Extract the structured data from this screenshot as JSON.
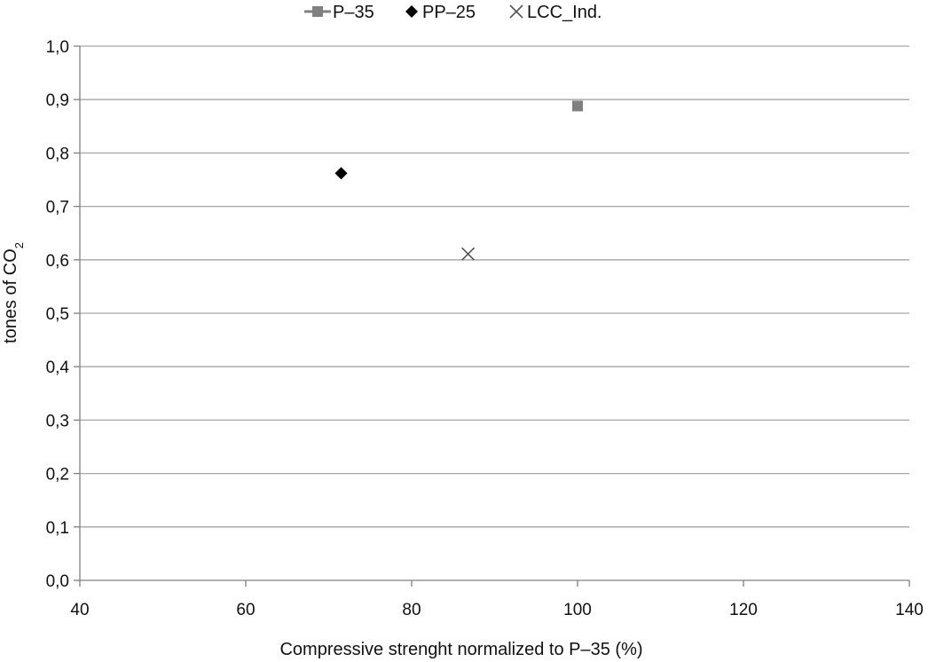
{
  "chart_data": {
    "type": "scatter",
    "xlabel": "Compressive strenght normalized to P–35 (%)",
    "ylabel": {
      "main": "tones of CO",
      "subscript": "2"
    },
    "xlim": [
      40,
      140
    ],
    "ylim": [
      0,
      1.0
    ],
    "x_ticks": [
      "40",
      "60",
      "80",
      "100",
      "120",
      "140"
    ],
    "y_ticks": [
      "0,0",
      "0,1",
      "0,2",
      "0,3",
      "0,4",
      "0,5",
      "0,6",
      "0,7",
      "0,8",
      "0,9",
      "1,0"
    ],
    "grid": "horizontal",
    "legend_position": "top",
    "series": [
      {
        "name": "P–35",
        "marker": "square",
        "color": "#808080",
        "points": [
          {
            "x": 100,
            "y": 0.888
          }
        ]
      },
      {
        "name": "PP–25",
        "marker": "diamond",
        "color": "#000000",
        "points": [
          {
            "x": 71.5,
            "y": 0.762
          }
        ]
      },
      {
        "name": "LCC_Ind.",
        "marker": "x",
        "color": "#555555",
        "points": [
          {
            "x": 86.8,
            "y": 0.611
          }
        ]
      }
    ]
  }
}
